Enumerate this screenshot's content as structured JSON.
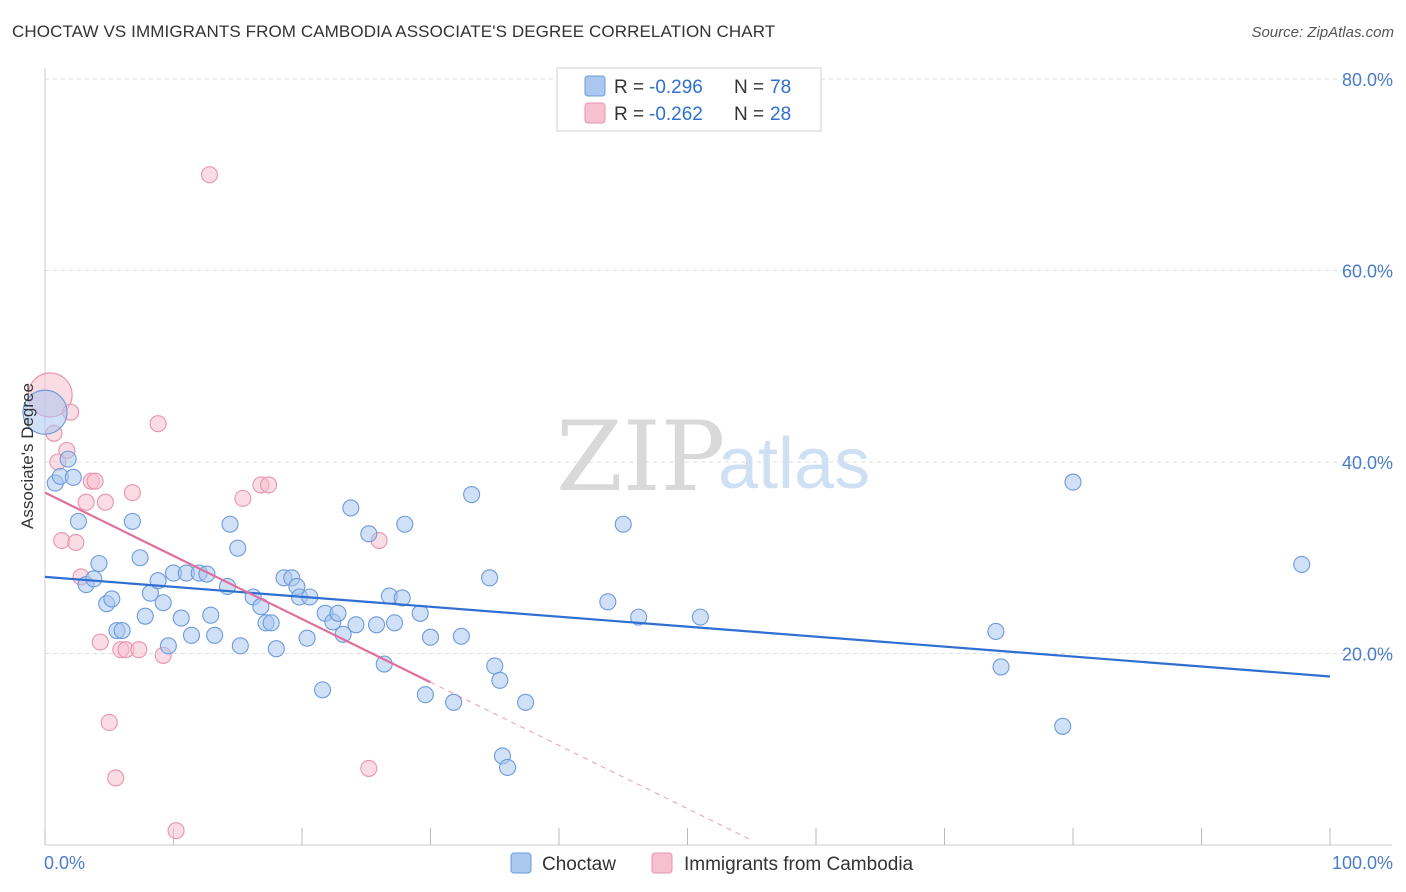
{
  "header": {
    "title": "CHOCTAW VS IMMIGRANTS FROM CAMBODIA ASSOCIATE'S DEGREE CORRELATION CHART",
    "source": "Source: ZipAtlas.com"
  },
  "watermark": {
    "zip": "ZIP",
    "atlas": "atlas"
  },
  "colors": {
    "choctaw_fill": "#a9c7ef",
    "choctaw_stroke": "#6b9bdc",
    "choctaw_line": "#2f6fd1",
    "cambodia_fill": "#f6c0d0",
    "cambodia_stroke": "#ea93ae",
    "cambodia_line": "#e0709b",
    "axis_label": "#4a7cc9",
    "grid": "#dddddd"
  },
  "legend_box": {
    "rows": [
      {
        "r_label": "R =",
        "r_value": "-0.296",
        "n_label": "N =",
        "n_value": "78"
      },
      {
        "r_label": "R =",
        "r_value": "-0.262",
        "n_label": "N =",
        "n_value": "28"
      }
    ]
  },
  "chart_data": {
    "type": "scatter",
    "title": "CHOCTAW VS IMMIGRANTS FROM CAMBODIA ASSOCIATE'S DEGREE CORRELATION CHART",
    "xlabel": "",
    "ylabel": "Associate's Degree",
    "xlim": [
      0,
      100
    ],
    "ylim": [
      0,
      80
    ],
    "x_tick_labels": [
      "0.0%",
      "100.0%"
    ],
    "y_tick_labels": [
      "20.0%",
      "40.0%",
      "60.0%",
      "80.0%"
    ],
    "y_ticks": [
      20,
      40,
      60,
      80
    ],
    "grid": true,
    "legend_position": "bottom-center",
    "series": [
      {
        "name": "Choctaw",
        "r": -0.296,
        "n": 78,
        "trend": {
          "x": [
            0,
            100
          ],
          "y": [
            28.0,
            17.6
          ]
        },
        "points": [
          [
            0.0,
            45.2
          ],
          [
            0.8,
            37.8
          ],
          [
            1.2,
            38.5
          ],
          [
            1.8,
            40.3
          ],
          [
            2.2,
            38.4
          ],
          [
            2.6,
            33.8
          ],
          [
            3.2,
            27.2
          ],
          [
            3.8,
            27.8
          ],
          [
            4.2,
            29.4
          ],
          [
            4.8,
            25.2
          ],
          [
            5.2,
            25.7
          ],
          [
            5.6,
            22.4
          ],
          [
            6.0,
            22.4
          ],
          [
            6.8,
            33.8
          ],
          [
            7.4,
            30.0
          ],
          [
            7.8,
            23.9
          ],
          [
            8.2,
            26.3
          ],
          [
            8.8,
            27.6
          ],
          [
            9.2,
            25.3
          ],
          [
            9.6,
            20.8
          ],
          [
            10.0,
            28.4
          ],
          [
            10.6,
            23.7
          ],
          [
            11.0,
            28.4
          ],
          [
            11.4,
            21.9
          ],
          [
            12.0,
            28.4
          ],
          [
            12.6,
            28.3
          ],
          [
            12.9,
            24.0
          ],
          [
            13.2,
            21.9
          ],
          [
            14.2,
            27.0
          ],
          [
            14.4,
            33.5
          ],
          [
            15.0,
            31.0
          ],
          [
            15.2,
            20.8
          ],
          [
            16.2,
            25.9
          ],
          [
            16.8,
            24.9
          ],
          [
            17.2,
            23.2
          ],
          [
            17.6,
            23.2
          ],
          [
            18.0,
            20.5
          ],
          [
            18.6,
            27.9
          ],
          [
            19.2,
            27.9
          ],
          [
            19.6,
            27.0
          ],
          [
            19.8,
            25.9
          ],
          [
            20.4,
            21.6
          ],
          [
            20.6,
            25.9
          ],
          [
            21.6,
            16.2
          ],
          [
            21.8,
            24.2
          ],
          [
            22.4,
            23.3
          ],
          [
            22.8,
            24.2
          ],
          [
            23.2,
            22.0
          ],
          [
            23.8,
            35.2
          ],
          [
            24.2,
            23.0
          ],
          [
            25.2,
            32.5
          ],
          [
            25.8,
            23.0
          ],
          [
            26.4,
            18.9
          ],
          [
            26.8,
            26.0
          ],
          [
            27.2,
            23.2
          ],
          [
            27.8,
            25.8
          ],
          [
            28.0,
            33.5
          ],
          [
            29.2,
            24.2
          ],
          [
            29.6,
            15.7
          ],
          [
            30.0,
            21.7
          ],
          [
            31.8,
            14.9
          ],
          [
            32.4,
            21.8
          ],
          [
            33.2,
            36.6
          ],
          [
            34.6,
            27.9
          ],
          [
            35.0,
            18.7
          ],
          [
            35.4,
            17.2
          ],
          [
            35.6,
            9.3
          ],
          [
            36.0,
            8.1
          ],
          [
            37.4,
            14.9
          ],
          [
            43.8,
            25.4
          ],
          [
            45.0,
            33.5
          ],
          [
            46.2,
            23.8
          ],
          [
            51.0,
            23.8
          ],
          [
            74.0,
            22.3
          ],
          [
            74.4,
            18.6
          ],
          [
            79.2,
            12.4
          ],
          [
            80.0,
            37.9
          ],
          [
            97.8,
            29.3
          ]
        ]
      },
      {
        "name": "Immigrants from Cambodia",
        "r": -0.262,
        "n": 28,
        "trend": {
          "x": [
            0,
            30
          ],
          "y": [
            36.8,
            17.0
          ]
        },
        "trend_dashed": {
          "x": [
            30,
            55
          ],
          "y": [
            17.0,
            0.5
          ]
        },
        "points": [
          [
            0.4,
            47.0
          ],
          [
            0.7,
            43.0
          ],
          [
            1.0,
            40.0
          ],
          [
            1.3,
            31.8
          ],
          [
            1.7,
            41.2
          ],
          [
            2.0,
            45.2
          ],
          [
            2.4,
            31.6
          ],
          [
            2.8,
            28.0
          ],
          [
            3.2,
            35.8
          ],
          [
            3.6,
            38.0
          ],
          [
            3.9,
            38.0
          ],
          [
            4.3,
            21.2
          ],
          [
            4.7,
            35.8
          ],
          [
            5.0,
            12.8
          ],
          [
            5.5,
            7.0
          ],
          [
            5.9,
            20.4
          ],
          [
            6.3,
            20.4
          ],
          [
            6.8,
            36.8
          ],
          [
            7.3,
            20.4
          ],
          [
            8.8,
            44.0
          ],
          [
            9.2,
            19.8
          ],
          [
            10.2,
            1.5
          ],
          [
            12.8,
            70.0
          ],
          [
            15.4,
            36.2
          ],
          [
            16.8,
            37.6
          ],
          [
            17.4,
            37.6
          ],
          [
            25.2,
            8.0
          ],
          [
            26.0,
            31.8
          ]
        ]
      }
    ]
  },
  "bottom_legend": {
    "items": [
      {
        "label": "Choctaw"
      },
      {
        "label": "Immigrants from Cambodia"
      }
    ]
  }
}
